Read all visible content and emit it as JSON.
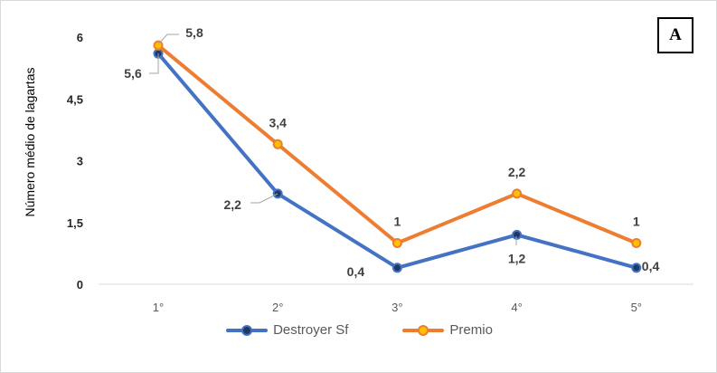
{
  "panel_label": "A",
  "chart_data": {
    "type": "line",
    "title": "",
    "xlabel": "",
    "ylabel": "Número médio de lagartas",
    "categories": [
      "1°",
      "2°",
      "3°",
      "4°",
      "5°"
    ],
    "ylim": [
      0,
      6
    ],
    "yticks": [
      0,
      1.5,
      3,
      4.5,
      6
    ],
    "ytick_labels": [
      "0",
      "1,5",
      "3",
      "4,5",
      "6"
    ],
    "grid": false,
    "legend_position": "bottom",
    "series": [
      {
        "name": "Destroyer Sf",
        "color": "#4472c4",
        "marker_fill": "#1f3864",
        "values": [
          5.6,
          2.2,
          0.4,
          1.2,
          0.4
        ],
        "labels": [
          "5,6",
          "2,2",
          "0,4",
          "1,2",
          "0,4"
        ]
      },
      {
        "name": "Premio",
        "color": "#ed7d31",
        "marker_fill": "#ffc000",
        "values": [
          5.8,
          3.4,
          1,
          2.2,
          1
        ],
        "labels": [
          "5,8",
          "3,4",
          "1",
          "2,2",
          "1"
        ]
      }
    ]
  }
}
